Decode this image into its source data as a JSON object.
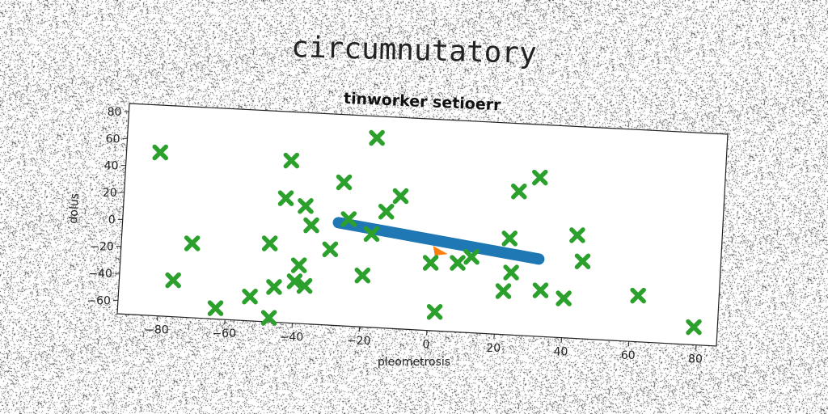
{
  "figure": {
    "supertitle": "circumnutatory"
  },
  "chart_data": {
    "type": "scatter",
    "title": "tinworker setioerr",
    "xlabel": "pleometrosis",
    "ylabel": "dolus",
    "xlim": [
      -92,
      86
    ],
    "ylim": [
      -70,
      86
    ],
    "xticks": [
      -80,
      -60,
      -40,
      -20,
      0,
      20,
      40,
      60,
      80
    ],
    "yticks": [
      -60,
      -40,
      -20,
      0,
      20,
      40,
      60,
      80
    ],
    "grid": false,
    "series": [
      {
        "kind": "line",
        "color": "#1f77b4",
        "x": [
          -28,
          32
        ],
        "y": [
          6,
          -13
        ]
      },
      {
        "kind": "triangle",
        "color": "#ff7f0e",
        "x": [
          2
        ],
        "y": [
          -12
        ]
      },
      {
        "kind": "markers",
        "marker": "x",
        "color": "#2ca02c",
        "x": [
          -82,
          -18,
          -43,
          31,
          -27,
          25,
          -10,
          -44,
          -38,
          -14,
          -36,
          -25,
          -18,
          23,
          43,
          -76,
          -71,
          -48,
          -30,
          45,
          -39,
          -20,
          0,
          8,
          12,
          24,
          -40,
          22,
          33,
          -37,
          -46,
          -53,
          40,
          62,
          2,
          -63,
          -47,
          79
        ],
        "y": [
          51,
          70,
          50,
          47,
          36,
          36,
          28,
          22,
          17,
          16,
          3,
          9,
          -1,
          1,
          6,
          -43,
          -15,
          -12,
          -14,
          -13,
          -27,
          -32,
          -20,
          -19,
          -14,
          -24,
          -39,
          -38,
          -36,
          -42,
          -44,
          -52,
          -41,
          -36,
          -56,
          -62,
          -67,
          -57
        ]
      }
    ]
  }
}
